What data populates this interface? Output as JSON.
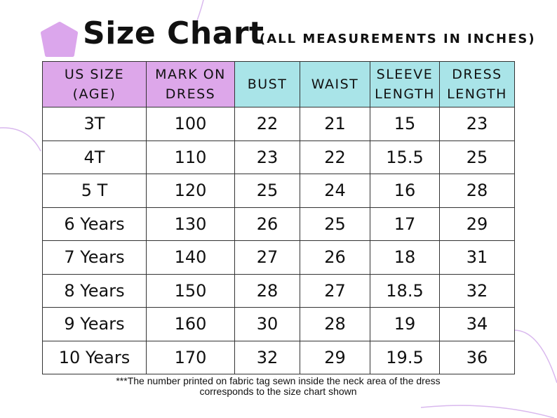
{
  "header": {
    "title": "Size Chart",
    "subtitle": "(ALL MEASUREMENTS IN INCHES)"
  },
  "table": {
    "columns": [
      [
        "US SIZE",
        "(AGE)"
      ],
      [
        "MARK ON",
        "DRESS"
      ],
      [
        "BUST"
      ],
      [
        "WAIST"
      ],
      [
        "SLEEVE",
        "LENGTH"
      ],
      [
        "DRESS",
        "LENGTH"
      ]
    ],
    "rows": [
      [
        "3T",
        100,
        22,
        21,
        15,
        23
      ],
      [
        "4T",
        110,
        23,
        22,
        15.5,
        25
      ],
      [
        "5 T",
        120,
        25,
        24,
        16,
        28
      ],
      [
        "6 Years",
        130,
        26,
        25,
        17,
        29
      ],
      [
        "7 Years",
        140,
        27,
        26,
        18,
        31
      ],
      [
        "8 Years",
        150,
        28,
        27,
        18.5,
        32
      ],
      [
        "9 Years",
        160,
        30,
        28,
        19,
        34
      ],
      [
        "10 Years",
        170,
        32,
        29,
        19.5,
        36
      ]
    ]
  },
  "footnote": [
    "***The number printed on fabric tag sewn inside the neck area of the dress",
    "corresponds to the size chart shown"
  ]
}
